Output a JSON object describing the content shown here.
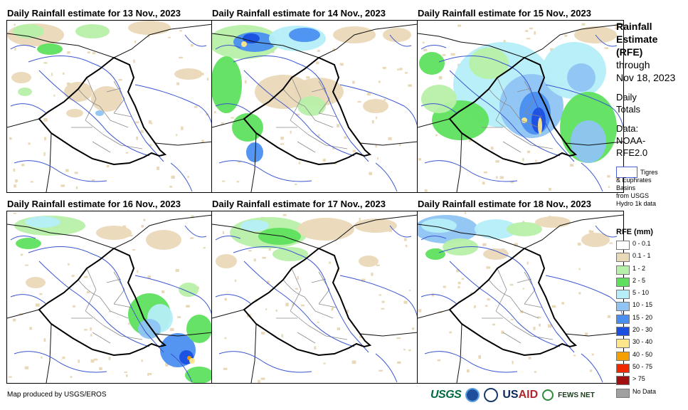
{
  "panels": [
    {
      "title": "Daily Rainfall estimate for 13 Nov., 2023",
      "pattern": "p13"
    },
    {
      "title": "Daily Rainfall estimate for 14 Nov., 2023",
      "pattern": "p14"
    },
    {
      "title": "Daily Rainfall estimate for 15 Nov., 2023",
      "pattern": "p15"
    },
    {
      "title": "Daily Rainfall estimate for 16 Nov., 2023",
      "pattern": "p16"
    },
    {
      "title": "Daily Rainfall estimate for 17 Nov., 2023",
      "pattern": "p17"
    },
    {
      "title": "Daily Rainfall estimate for 18 Nov., 2023",
      "pattern": "p18"
    }
  ],
  "side": {
    "title_line1": "Rainfall",
    "title_line2": "Estimate",
    "title_line3": "(RFE)",
    "through": "through",
    "date": "Nov 18, 2023",
    "daily1": "Daily",
    "daily2": "Totals",
    "data1": "Data:",
    "data2": "NOAA-",
    "data3": "RFE2.0",
    "basin_line1": "Tigres",
    "basin_line2": "& Euphrates",
    "basin_line3": "Basins",
    "basin_line4": "from USGS",
    "basin_line5": "Hydro 1k data"
  },
  "legend": {
    "title": "RFE (mm)",
    "items": [
      {
        "label": "0 - 0.1",
        "color": "#ffffff"
      },
      {
        "label": "0.1 - 1",
        "color": "#ead9b8"
      },
      {
        "label": "1 - 2",
        "color": "#b7f0a8"
      },
      {
        "label": "2 - 5",
        "color": "#5ee05e"
      },
      {
        "label": "5 - 10",
        "color": "#b5eef8"
      },
      {
        "label": "10 - 15",
        "color": "#8fc4f4"
      },
      {
        "label": "15 - 20",
        "color": "#4a8ff0"
      },
      {
        "label": "20 - 30",
        "color": "#1a4fe0"
      },
      {
        "label": "30 - 40",
        "color": "#fde68a"
      },
      {
        "label": "40 - 50",
        "color": "#f5a000"
      },
      {
        "label": "50 - 75",
        "color": "#f02800"
      },
      {
        "label": "> 75",
        "color": "#a01010"
      },
      {
        "label": "No Data",
        "color": "#a0a0a0"
      }
    ]
  },
  "footer": {
    "credit": "Map produced by USGS/EROS",
    "usgs": "USGS",
    "usaid_a": "US",
    "usaid_b": "AID",
    "fews": "FEWS NET"
  }
}
